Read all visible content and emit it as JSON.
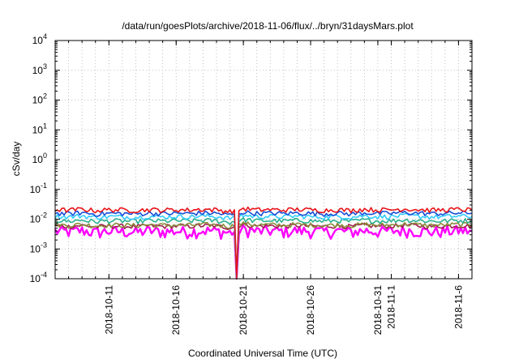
{
  "chart_data": {
    "type": "line",
    "title": "/data/run/goesPlots/archive/2018-11-06/flux/../bryn/31daysMars.plot",
    "xlabel": "Coordinated Universal Time (UTC)",
    "ylabel": "cSv/day",
    "yscale": "log",
    "ylim": [
      0.0001,
      10000
    ],
    "xlim": [
      "2018-10-07",
      "2018-11-07"
    ],
    "grid": true,
    "y_ticks": [
      {
        "value": 0.0001,
        "base": "10",
        "exp": "-4"
      },
      {
        "value": 0.001,
        "base": "10",
        "exp": "-3"
      },
      {
        "value": 0.01,
        "base": "10",
        "exp": "-2"
      },
      {
        "value": 0.1,
        "base": "10",
        "exp": "-1"
      },
      {
        "value": 1,
        "base": "10",
        "exp": "0"
      },
      {
        "value": 10,
        "base": "10",
        "exp": "1"
      },
      {
        "value": 100,
        "base": "10",
        "exp": "2"
      },
      {
        "value": 1000,
        "base": "10",
        "exp": "3"
      },
      {
        "value": 10000,
        "base": "10",
        "exp": "4"
      }
    ],
    "x_ticks": [
      {
        "date": "2018-10-11",
        "label": "2018-10-11"
      },
      {
        "date": "2018-10-16",
        "label": "2018-10-16"
      },
      {
        "date": "2018-10-21",
        "label": "2018-10-21"
      },
      {
        "date": "2018-10-26",
        "label": "2018-10-26"
      },
      {
        "date": "2018-10-31",
        "label": "2018-10-31"
      },
      {
        "date": "2018-11-01",
        "label": "2018-11-1"
      },
      {
        "date": "2018-11-06",
        "label": "2018-11-6"
      }
    ],
    "x": [
      "2018-10-07",
      "2018-10-08",
      "2018-10-09",
      "2018-10-10",
      "2018-10-11",
      "2018-10-12",
      "2018-10-13",
      "2018-10-14",
      "2018-10-15",
      "2018-10-16",
      "2018-10-17",
      "2018-10-18",
      "2018-10-19",
      "2018-10-20",
      "2018-10-21",
      "2018-10-22",
      "2018-10-23",
      "2018-10-24",
      "2018-10-25",
      "2018-10-26",
      "2018-10-27",
      "2018-10-28",
      "2018-10-29",
      "2018-10-30",
      "2018-10-31",
      "2018-11-01",
      "2018-11-02",
      "2018-11-03",
      "2018-11-04",
      "2018-11-05",
      "2018-11-06",
      "2018-11-07"
    ],
    "series": [
      {
        "color": "#ff00ff",
        "values": [
          0.004,
          0.0038,
          0.0042,
          0.0036,
          0.004,
          0.0039,
          0.0037,
          0.0041,
          0.0038,
          0.004,
          0.0039,
          0.0042,
          0.004,
          0.0035,
          0.0045,
          0.004,
          0.0041,
          0.0039,
          0.0042,
          0.004,
          0.0038,
          0.0041,
          0.0037,
          0.0042,
          0.0039,
          0.004,
          0.0043,
          0.0041,
          0.0038,
          0.004,
          0.0042,
          0.004
        ]
      },
      {
        "color": "#a0204e",
        "values": [
          0.006,
          0.0057,
          0.0062,
          0.0055,
          0.0059,
          0.0058,
          0.0056,
          0.006,
          0.0057,
          0.0059,
          0.0058,
          0.0061,
          0.0059,
          0.0052,
          0.0066,
          0.0059,
          0.006,
          0.0058,
          0.0061,
          0.0059,
          0.0057,
          0.006,
          0.0056,
          0.0062,
          0.0058,
          0.0059,
          0.0063,
          0.006,
          0.0057,
          0.0059,
          0.0061,
          0.0059
        ]
      },
      {
        "color": "#8b8b3a",
        "values": [
          0.0065,
          0.0062,
          0.0067,
          0.006,
          0.0064,
          0.0063,
          0.0061,
          0.0065,
          0.0062,
          0.0064,
          0.0063,
          0.0066,
          0.0064,
          0.0057,
          0.0071,
          0.0064,
          0.0065,
          0.0063,
          0.0066,
          0.0064,
          0.0062,
          0.0065,
          0.0061,
          0.0067,
          0.0063,
          0.0064,
          0.0068,
          0.0065,
          0.0062,
          0.0064,
          0.0066,
          0.0064
        ]
      },
      {
        "color": "#2ab090",
        "values": [
          0.009,
          0.0085,
          0.0093,
          0.0082,
          0.0089,
          0.0087,
          0.0084,
          0.009,
          0.0086,
          0.0089,
          0.0087,
          0.0092,
          0.0088,
          0.0078,
          0.0098,
          0.0088,
          0.009,
          0.0087,
          0.0091,
          0.0088,
          0.0085,
          0.009,
          0.0084,
          0.0093,
          0.0087,
          0.0089,
          0.0095,
          0.009,
          0.0086,
          0.0088,
          0.0091,
          0.0088
        ]
      },
      {
        "color": "#33ccff",
        "values": [
          0.0125,
          0.012,
          0.013,
          0.0115,
          0.0123,
          0.012,
          0.0117,
          0.0125,
          0.0119,
          0.0123,
          0.0121,
          0.0128,
          0.0122,
          0.0108,
          0.0135,
          0.0122,
          0.0125,
          0.012,
          0.0127,
          0.0122,
          0.0118,
          0.0125,
          0.0116,
          0.013,
          0.0121,
          0.0123,
          0.0132,
          0.0125,
          0.0119,
          0.0122,
          0.0126,
          0.0122
        ]
      },
      {
        "color": "#1a4fd6",
        "values": [
          0.016,
          0.0152,
          0.0165,
          0.0148,
          0.0158,
          0.0155,
          0.015,
          0.016,
          0.0153,
          0.0158,
          0.0155,
          0.0163,
          0.0157,
          0.0138,
          0.0172,
          0.0157,
          0.016,
          0.0155,
          0.0162,
          0.0157,
          0.0151,
          0.016,
          0.0149,
          0.0165,
          0.0155,
          0.0158,
          0.0168,
          0.016,
          0.0153,
          0.0157,
          0.0162,
          0.0157
        ]
      },
      {
        "color": "#e8141a",
        "values": [
          0.021,
          0.02,
          0.0218,
          0.0194,
          0.0208,
          0.0204,
          0.0197,
          0.021,
          0.0201,
          0.0208,
          0.0204,
          0.0215,
          0.0206,
          0.0182,
          0.0228,
          0.0206,
          0.021,
          0.0204,
          0.0213,
          0.0206,
          0.0199,
          0.021,
          0.0196,
          0.0218,
          0.0204,
          0.0208,
          0.0222,
          0.021,
          0.0201,
          0.0206,
          0.0213,
          0.0206
        ]
      }
    ],
    "dip": {
      "date": "2018-10-20",
      "value": 0.0001
    }
  }
}
